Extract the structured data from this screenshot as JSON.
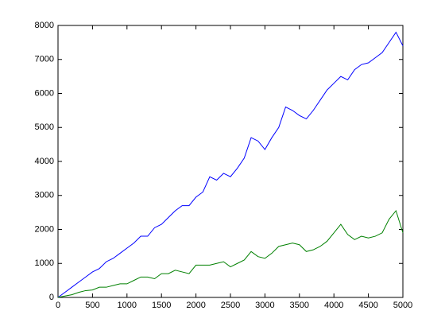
{
  "chart_data": {
    "type": "line",
    "x": [
      0,
      100,
      200,
      300,
      400,
      500,
      600,
      700,
      800,
      900,
      1000,
      1100,
      1200,
      1300,
      1400,
      1500,
      1600,
      1700,
      1800,
      1900,
      2000,
      2100,
      2200,
      2300,
      2400,
      2500,
      2600,
      2700,
      2800,
      2900,
      3000,
      3100,
      3200,
      3300,
      3400,
      3500,
      3600,
      3700,
      3800,
      3900,
      4000,
      4100,
      4200,
      4300,
      4400,
      4500,
      4600,
      4700,
      4800,
      4900,
      5000
    ],
    "series": [
      {
        "color": "#0000ff",
        "values": [
          0,
          150,
          300,
          450,
          600,
          750,
          850,
          1050,
          1150,
          1300,
          1450,
          1600,
          1800,
          1800,
          2050,
          2150,
          2350,
          2550,
          2700,
          2700,
          2950,
          3100,
          3550,
          3450,
          3650,
          3550,
          3800,
          4100,
          4700,
          4600,
          4350,
          4700,
          5000,
          5600,
          5500,
          5350,
          5250,
          5500,
          5800,
          6100,
          6300,
          6500,
          6400,
          6700,
          6850,
          6900,
          7050,
          7200,
          7500,
          7800,
          7400
        ]
      },
      {
        "color": "#008000",
        "values": [
          0,
          40,
          80,
          150,
          200,
          220,
          300,
          300,
          350,
          400,
          400,
          500,
          600,
          600,
          550,
          700,
          700,
          800,
          750,
          700,
          950,
          950,
          950,
          1000,
          1050,
          900,
          1000,
          1100,
          1350,
          1200,
          1150,
          1300,
          1500,
          1550,
          1600,
          1550,
          1350,
          1400,
          1500,
          1650,
          1900,
          2150,
          1850,
          1700,
          1800,
          1750,
          1800,
          1900,
          2300,
          2550,
          1900
        ]
      }
    ],
    "xlim": [
      0,
      5000
    ],
    "xticks": [
      0,
      500,
      1000,
      1500,
      2000,
      2500,
      3000,
      3500,
      4000,
      4500,
      5000
    ],
    "ylim": [
      0,
      8000
    ],
    "yticks": [
      0,
      1000,
      2000,
      3000,
      4000,
      5000,
      6000,
      7000,
      8000
    ],
    "grid": false
  }
}
